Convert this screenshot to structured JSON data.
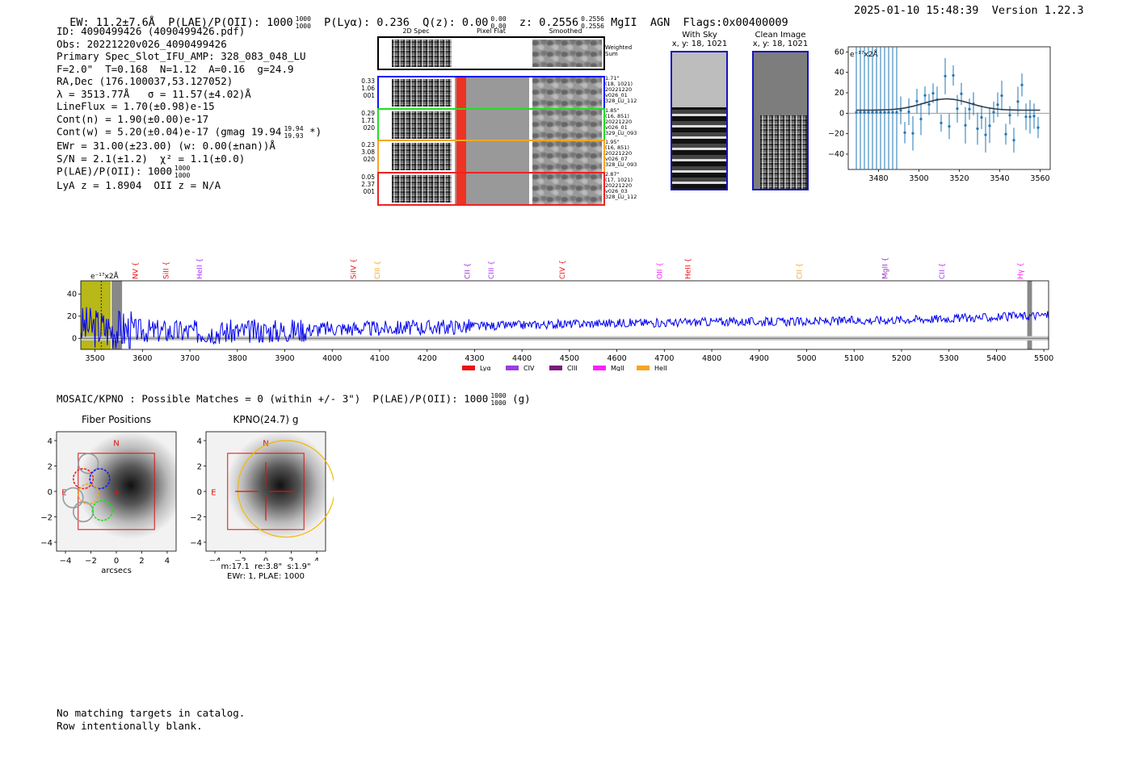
{
  "header": {
    "ew": "EW: 11.2±7.6Å",
    "plae_label": "P(LAE)/P(OII): 1000",
    "plae_hi": "1000",
    "plae_lo": "1000",
    "plya": "P(Lyα): 0.236",
    "qz": "Q(z): 0.00",
    "qz_hi": "0.00",
    "qz_lo": "0.00",
    "z": "z: 0.2556",
    "z_hi": "0.2556",
    "z_lo": "0.2556",
    "tags": "MgII  AGN  Flags:0x00400009",
    "timestamp": "2025-01-10 15:48:39",
    "version": "Version 1.22.3"
  },
  "info": {
    "id": "ID: 4090499426 (4090499426.pdf)",
    "obs": "Obs: 20221220v026_4090499426",
    "primary": "Primary Spec_Slot_IFU_AMP: 328_083_048_LU",
    "fiber": "F=2.0\"  T=0.168  N=1.12  A=0.16  g=24.9",
    "radec": "RA,Dec (176.100037,53.127052)",
    "lambda": "λ = 3513.77Å   σ = 11.57(±4.02)Å",
    "lineflux": "LineFlux = 1.70(±0.98)e-15",
    "contn": "Cont(n) = 1.90(±0.00)e-17",
    "contw": "Cont(w) = 5.20(±0.04)e-17 (gmag 19.94",
    "contw_hi": "19.94",
    "contw_lo": "19.93",
    "contw_end": "*)",
    "ewr": "EWr = 31.00(±23.00) (w: 0.00(±nan))Å",
    "sn": "S/N = 2.1(±1.2)  χ² = 1.1(±0.0)",
    "plae": "P(LAE)/P(OII): 1000",
    "plae_hi": "1000",
    "plae_lo": "1000",
    "lyaz": "LyA z = 1.8904  OII z = N/A"
  },
  "cutouts": {
    "titles": [
      "2D Spec",
      "Pixel Flat",
      "Smoothed"
    ],
    "weighted_label": "Weighted\nSum",
    "rows": [
      {
        "left": "0.33\n1.06\n001",
        "right": "1.71\"\n(18, 1021)\n20221220\nv026_01\n328_LU_112",
        "color": "#1010ff"
      },
      {
        "left": "0.29\n1.71\n020",
        "right": "1.85\"\n(16, 851)\n20221220\nv026_01\n329_LU_093",
        "color": "#22dd22"
      },
      {
        "left": "0.23\n3.08\n020",
        "right": "1.95\"\n(16, 851)\n20221220\nv026_07\n328_LU_093",
        "color": "#f5a623"
      },
      {
        "left": "0.05\n2.37\n001",
        "right": "2.87\"\n(17, 1021)\n20221220\nv026_03\n328_LU_112",
        "color": "#ee2222"
      }
    ]
  },
  "stamps": {
    "sky_title": "With Sky",
    "sky_coord": "x, y: 18, 1021",
    "clean_title": "Clean Image",
    "clean_coord": "x, y: 18, 1021"
  },
  "zoom_chart": {
    "unit_label": "e⁻¹⁷x2Å",
    "xticks": [
      "3480",
      "3500",
      "3520",
      "3540",
      "3560"
    ],
    "yticks": [
      "60",
      "40",
      "20",
      "0",
      "−20",
      "−40"
    ]
  },
  "spectrum": {
    "unit_label": "e⁻¹⁷x2Å",
    "yticks": [
      "40",
      "20",
      "0"
    ],
    "xticks": [
      "3500",
      "3600",
      "3700",
      "3800",
      "3900",
      "4000",
      "4100",
      "4200",
      "4300",
      "4400",
      "4500",
      "4600",
      "4700",
      "4800",
      "4900",
      "5000",
      "5100",
      "5200",
      "5300",
      "5400",
      "5500"
    ],
    "lines": [
      {
        "name": "NV",
        "color": "#ee1111",
        "x": 3585
      },
      {
        "name": "SiII",
        "color": "#ee1111",
        "x": 3650
      },
      {
        "name": "HeII",
        "color": "#aa33ff",
        "x": 3720
      },
      {
        "name": "SiIV",
        "color": "#ee1111",
        "x": 4045
      },
      {
        "name": "CIII",
        "color": "#f5a623",
        "x": 4095
      },
      {
        "name": "CII",
        "color": "#9933cc",
        "x": 4285
      },
      {
        "name": "CIII",
        "color": "#aa33ff",
        "x": 4335
      },
      {
        "name": "CIV",
        "color": "#ee1111",
        "x": 4485
      },
      {
        "name": "OII",
        "color": "#ff22ff",
        "x": 4690
      },
      {
        "name": "HeII",
        "color": "#ee1111",
        "x": 4750
      },
      {
        "name": "CII",
        "color": "#f5a623",
        "x": 4985
      },
      {
        "name": "MgII",
        "color": "#9933cc",
        "x": 5165
      },
      {
        "name": "CII",
        "color": "#aa33ff",
        "x": 5285
      },
      {
        "name": "Hγ",
        "color": "#ff22ff",
        "x": 5450
      }
    ],
    "legend": [
      {
        "name": "Lyα",
        "color": "#ee1111"
      },
      {
        "name": "CIV",
        "color": "#9b3de6"
      },
      {
        "name": "CIII",
        "color": "#7a1a7a"
      },
      {
        "name": "MgII",
        "color": "#ff22ff"
      },
      {
        "name": "HeII",
        "color": "#f5a623"
      }
    ]
  },
  "mosaic": {
    "line": "MOSAIC/KPNO : Possible Matches = 0 (within +/- 3\")  P(LAE)/P(OII): 1000",
    "hi": "1000",
    "lo": "1000",
    "end": "(g)"
  },
  "fiber_panel": {
    "title": "Fiber Positions",
    "xlabel": "arcsecs",
    "n_label": "N",
    "e_label": "E",
    "yticks": [
      "4",
      "2",
      "0",
      "−2",
      "−4"
    ],
    "xticks": [
      "−4",
      "−2",
      "0",
      "2",
      "4"
    ]
  },
  "kpno_panel": {
    "title": "KPNO(24.7) g",
    "n_label": "N",
    "e_label": "E",
    "caption1": "m:17.1  re:3.8\"  s:1.9\"",
    "caption2": "EWr: 1, PLAE: 1000",
    "yticks": [
      "4",
      "2",
      "0",
      "−2",
      "−4"
    ],
    "xticks": [
      "−4",
      "−2",
      "0",
      "2",
      "4"
    ]
  },
  "footer": {
    "line1": "No matching targets in catalog.",
    "line2": "Row intentionally blank."
  },
  "chart_data": {
    "type": "line",
    "title": "",
    "xlabel": "",
    "ylabel": "e⁻¹⁷x2Å",
    "xlim": [
      3470,
      5510
    ],
    "ylim": [
      -10,
      50
    ],
    "grid": false,
    "series": [
      {
        "name": "",
        "x": [
          3500,
          3550,
          3600,
          3700,
          3800,
          3900,
          4000,
          4100,
          4200,
          4300,
          4400,
          4500,
          4600,
          4700,
          4800,
          4900,
          5000,
          5100,
          5200,
          5300,
          5400,
          5500
        ],
        "values": [
          10,
          8,
          7,
          6,
          6,
          7,
          9,
          9,
          10,
          11,
          12,
          13,
          14,
          14,
          15,
          15,
          15,
          16,
          17,
          18,
          19,
          21
        ]
      }
    ]
  }
}
